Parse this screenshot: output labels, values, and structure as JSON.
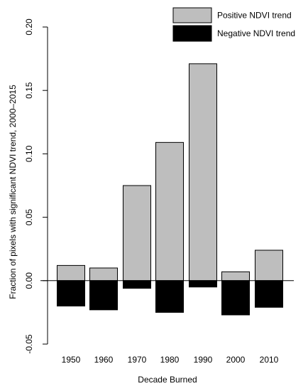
{
  "chart_data": {
    "type": "bar",
    "title": "",
    "xlabel": "Decade Burned",
    "ylabel": "Fraction of pixels with significant NDVI trend, 2000–2015",
    "categories": [
      "1950",
      "1960",
      "1970",
      "1980",
      "1990",
      "2000",
      "2010"
    ],
    "series": [
      {
        "name": "Positive NDVI trend",
        "color": "#bebebe",
        "values": [
          0.012,
          0.01,
          0.075,
          0.109,
          0.171,
          0.007,
          0.024
        ]
      },
      {
        "name": "Negative NDVI trend",
        "color": "#000000",
        "values": [
          -0.02,
          -0.023,
          -0.006,
          -0.025,
          -0.005,
          -0.027,
          -0.021
        ]
      }
    ],
    "ylim": [
      -0.05,
      0.2
    ],
    "yticks": [
      "-0.05",
      "0.00",
      "0.05",
      "0.10",
      "0.15",
      "0.20"
    ],
    "legend_position": "top-right",
    "grid": false
  }
}
